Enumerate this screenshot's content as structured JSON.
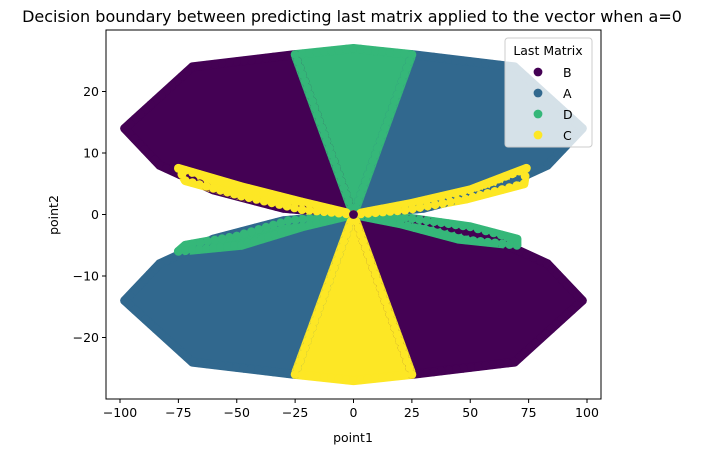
{
  "chart_data": {
    "type": "scatter",
    "title": "Decision boundary between predicting last matrix applied to the vector when a=0",
    "xlabel": "point1",
    "ylabel": "point2",
    "xlim": [
      -106,
      106
    ],
    "ylim": [
      -30,
      30
    ],
    "xticks": [
      -100,
      -75,
      -50,
      -25,
      0,
      25,
      50,
      75,
      100
    ],
    "yticks": [
      -20,
      -10,
      0,
      10,
      20
    ],
    "xtick_labels": [
      "−100",
      "−75",
      "−50",
      "−25",
      "0",
      "25",
      "50",
      "75",
      "100"
    ],
    "ytick_labels": [
      "−20",
      "−10",
      "0",
      "10",
      "20"
    ],
    "grid": false,
    "legend": {
      "title": "Last Matrix",
      "placement": "top-right",
      "entries": [
        "B",
        "A",
        "D",
        "C"
      ]
    },
    "colors": {
      "A": "#31688e",
      "B": "#440154",
      "C": "#fde725",
      "D": "#35b779"
    },
    "series": [
      {
        "name": "B",
        "color": "#440154",
        "regions": [
          [
            [
              0,
              0
            ],
            [
              -25,
              26
            ],
            [
              -69,
              24
            ],
            [
              -98,
              14
            ],
            [
              -83,
              8
            ],
            [
              -60,
              4
            ],
            [
              -30,
              1
            ]
          ],
          [
            [
              0,
              0
            ],
            [
              30,
              -1
            ],
            [
              60,
              -4
            ],
            [
              83,
              -8
            ],
            [
              98,
              -14
            ],
            [
              69,
              -24
            ],
            [
              25,
              -26
            ]
          ]
        ]
      },
      {
        "name": "A",
        "color": "#31688e",
        "regions": [
          [
            [
              0,
              0
            ],
            [
              25,
              26
            ],
            [
              69,
              24
            ],
            [
              98,
              14
            ],
            [
              83,
              8
            ],
            [
              60,
              4
            ],
            [
              30,
              1
            ]
          ],
          [
            [
              0,
              0
            ],
            [
              -30,
              -1
            ],
            [
              -60,
              -4
            ],
            [
              -83,
              -8
            ],
            [
              -98,
              -14
            ],
            [
              -69,
              -24
            ],
            [
              -25,
              -26
            ]
          ]
        ]
      },
      {
        "name": "D",
        "color": "#35b779",
        "regions": [
          [
            [
              0,
              0
            ],
            [
              -25,
              26
            ],
            [
              0,
              27
            ],
            [
              25,
              26
            ]
          ],
          [
            [
              0,
              0
            ],
            [
              -28,
              -1
            ],
            [
              -50,
              -3.5
            ],
            [
              -72,
              -5
            ],
            [
              -75,
              -6
            ],
            [
              -48,
              -5
            ],
            [
              -22,
              -2
            ]
          ],
          [
            [
              0,
              0
            ],
            [
              22,
              -0.5
            ],
            [
              50,
              -2
            ],
            [
              70,
              -4
            ],
            [
              70,
              -5
            ],
            [
              45,
              -4
            ],
            [
              20,
              -1.5
            ]
          ]
        ]
      },
      {
        "name": "C",
        "color": "#fde725",
        "regions": [
          [
            [
              0,
              0
            ],
            [
              -25,
              -26
            ],
            [
              0,
              -27
            ],
            [
              25,
              -26
            ]
          ],
          [
            [
              0,
              0
            ],
            [
              -22,
              0.8
            ],
            [
              -48,
              3
            ],
            [
              -72,
              5.5
            ],
            [
              -75,
              7.5
            ],
            [
              -48,
              4.5
            ],
            [
              -22,
              2
            ]
          ],
          [
            [
              0,
              0
            ],
            [
              25,
              1.8
            ],
            [
              50,
              4
            ],
            [
              74,
              7.5
            ],
            [
              73,
              5
            ],
            [
              48,
              2.5
            ],
            [
              22,
              0.7
            ]
          ]
        ]
      }
    ]
  }
}
